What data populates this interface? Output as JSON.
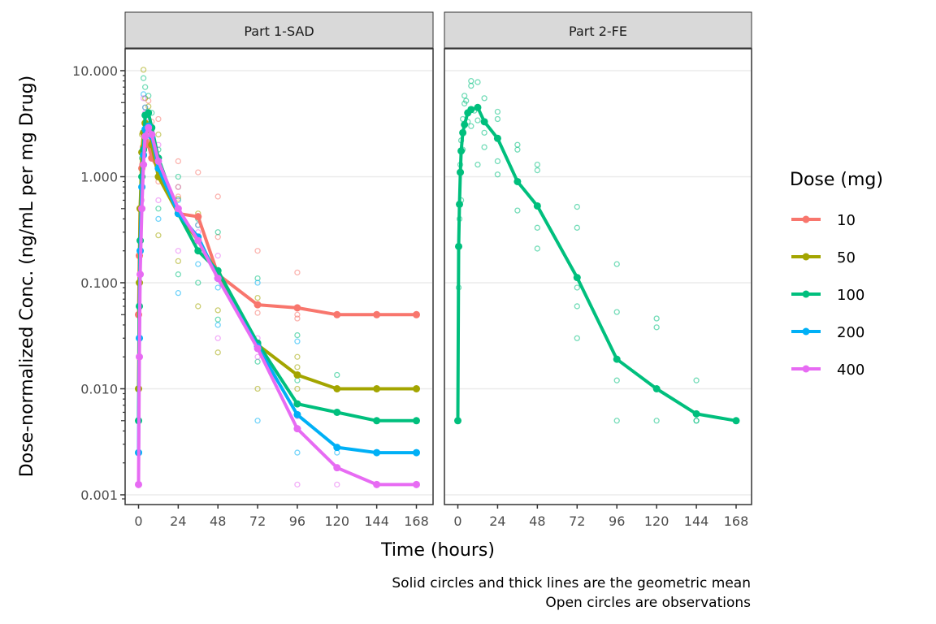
{
  "chart_data": {
    "type": "line",
    "title": "",
    "xlabel": "Time (hours)",
    "ylabel": "Dose-normalized Conc. (ng/mL per mg Drug)",
    "yscale": "log10",
    "ylim": [
      0.001,
      15
    ],
    "xlim": [
      -5,
      173
    ],
    "x_ticks": [
      0,
      24,
      48,
      72,
      96,
      120,
      144,
      168
    ],
    "x_tick_labels": [
      "0",
      "24",
      "48",
      "72",
      "96",
      "120",
      "144",
      "168"
    ],
    "y_ticks": [
      0.001,
      0.01,
      0.1,
      1,
      10
    ],
    "y_tick_labels": [
      "0.001",
      "0.010",
      "0.100",
      "1.000",
      "10.000"
    ],
    "grid": true,
    "legend": {
      "title": "Dose (mg)",
      "placement": "right",
      "entries": [
        {
          "label": "10",
          "color": "#F8766D"
        },
        {
          "label": "50",
          "color": "#A3A500"
        },
        {
          "label": "100",
          "color": "#00BF7D"
        },
        {
          "label": "200",
          "color": "#00B0F6"
        },
        {
          "label": "400",
          "color": "#E76BF3"
        }
      ]
    },
    "caption_lines": [
      "Solid circles and thick lines are the geometric mean",
      "Open circles are observations"
    ],
    "panels": [
      {
        "strip": "Part 1-SAD",
        "series": [
          {
            "name": "10",
            "color": "#F8766D",
            "x": [
              0,
              0.5,
              1,
              2,
              3,
              4,
              6,
              8,
              12,
              24,
              36,
              48,
              72,
              96,
              120,
              144,
              168
            ],
            "y": [
              0.05,
              0.18,
              0.5,
              1.2,
              1.9,
              2.2,
              2.0,
              1.5,
              1.2,
              0.45,
              0.42,
              0.12,
              0.062,
              0.058,
              0.05,
              0.05,
              0.05
            ]
          },
          {
            "name": "50",
            "color": "#A3A500",
            "x": [
              0,
              0.5,
              1,
              2,
              3,
              4,
              6,
              8,
              12,
              24,
              36,
              48,
              72,
              96,
              120,
              144,
              168
            ],
            "y": [
              0.01,
              0.1,
              0.5,
              1.7,
              2.6,
              3.2,
              3.0,
              2.0,
              1.0,
              0.45,
              0.25,
              0.12,
              0.026,
              0.0135,
              0.01,
              0.01,
              0.01
            ]
          },
          {
            "name": "100",
            "color": "#00BF7D",
            "x": [
              0,
              0.5,
              1,
              2,
              3,
              4,
              6,
              8,
              12,
              24,
              36,
              48,
              72,
              96,
              120,
              144,
              168
            ],
            "y": [
              0.005,
              0.06,
              0.25,
              1.0,
              1.8,
              3.8,
              4.0,
              2.9,
              1.5,
              0.45,
              0.2,
              0.13,
              0.027,
              0.0072,
              0.006,
              0.005,
              0.005
            ]
          },
          {
            "name": "200",
            "color": "#00B0F6",
            "x": [
              0,
              0.5,
              1,
              2,
              3,
              4,
              6,
              8,
              12,
              24,
              36,
              48,
              72,
              96,
              120,
              144,
              168
            ],
            "y": [
              0.0025,
              0.03,
              0.2,
              0.8,
              1.6,
              2.8,
              3.0,
              2.4,
              1.2,
              0.45,
              0.27,
              0.11,
              0.025,
              0.0057,
              0.0028,
              0.0025,
              0.0025
            ]
          },
          {
            "name": "400",
            "color": "#E76BF3",
            "x": [
              0,
              0.5,
              1,
              2,
              3,
              4,
              6,
              8,
              12,
              24,
              36,
              48,
              72,
              96,
              120,
              144,
              168
            ],
            "y": [
              0.00125,
              0.02,
              0.12,
              0.5,
              1.3,
              2.4,
              2.9,
              2.5,
              1.4,
              0.5,
              0.25,
              0.11,
              0.024,
              0.0042,
              0.0018,
              0.00125,
              0.00125
            ]
          }
        ],
        "observations": [
          {
            "color": "#F8766D",
            "x": [
              0.5,
              1,
              2,
              3,
              4,
              6,
              8,
              12,
              12,
              24,
              24,
              36,
              36,
              48,
              48,
              72,
              72,
              96,
              96,
              96,
              120,
              144,
              168
            ],
            "y": [
              0.18,
              0.5,
              1.3,
              2.5,
              4.5,
              5.2,
              3.3,
              3.5,
              0.9,
              1.4,
              0.65,
              1.1,
              0.35,
              0.65,
              0.27,
              0.2,
              0.052,
              0.125,
              0.05,
              0.046,
              0.05,
              0.05,
              0.05
            ]
          },
          {
            "color": "#A3A500",
            "x": [
              0,
              1,
              2,
              3,
              4,
              6,
              8,
              12,
              12,
              24,
              24,
              24,
              36,
              36,
              48,
              48,
              72,
              72,
              96,
              96,
              96
            ],
            "y": [
              0.01,
              0.5,
              2.5,
              10.2,
              5.5,
              4.6,
              2.8,
              2.5,
              0.28,
              0.8,
              0.62,
              0.16,
              0.45,
              0.06,
              0.055,
              0.022,
              0.072,
              0.01,
              0.02,
              0.016,
              0.01
            ]
          },
          {
            "color": "#00BF7D",
            "x": [
              0,
              1,
              2,
              3,
              4,
              6,
              8,
              12,
              12,
              24,
              24,
              36,
              36,
              48,
              48,
              72,
              72,
              96,
              96,
              120
            ],
            "y": [
              0.005,
              0.25,
              1.5,
              8.5,
              7.0,
              5.8,
              4.0,
              1.8,
              0.5,
              1.0,
              0.12,
              0.4,
              0.1,
              0.3,
              0.045,
              0.11,
              0.018,
              0.032,
              0.012,
              0.0135
            ]
          },
          {
            "color": "#00B0F6",
            "x": [
              0,
              1,
              2,
              3,
              4,
              6,
              8,
              12,
              12,
              24,
              24,
              36,
              36,
              48,
              48,
              72,
              72,
              96,
              96,
              120
            ],
            "y": [
              0.0025,
              0.2,
              1.0,
              6.0,
              4.5,
              3.5,
              2.6,
              1.5,
              0.4,
              0.6,
              0.08,
              0.35,
              0.15,
              0.09,
              0.04,
              0.1,
              0.005,
              0.028,
              0.0025,
              0.0025
            ]
          },
          {
            "color": "#E76BF3",
            "x": [
              0,
              1,
              2,
              3,
              4,
              6,
              8,
              12,
              12,
              24,
              24,
              36,
              48,
              48,
              72,
              72,
              96,
              96,
              120
            ],
            "y": [
              0.00125,
              0.12,
              0.6,
              5.5,
              4.0,
              3.3,
              2.2,
              2.0,
              0.6,
              0.8,
              0.2,
              0.3,
              0.18,
              0.03,
              0.03,
              0.02,
              0.0055,
              0.00125,
              0.00125
            ]
          }
        ]
      },
      {
        "strip": "Part 2-FE",
        "series": [
          {
            "name": "100",
            "color": "#00BF7D",
            "x": [
              0,
              0.5,
              1,
              1.5,
              2,
              3,
              4,
              6,
              8,
              12,
              16,
              24,
              36,
              48,
              72,
              96,
              120,
              144,
              168
            ],
            "y": [
              0.005,
              0.22,
              0.55,
              1.1,
              1.75,
              2.6,
              3.1,
              4.0,
              4.3,
              4.5,
              3.3,
              2.3,
              0.9,
              0.53,
              0.112,
              0.019,
              0.01,
              0.0058,
              0.005
            ]
          }
        ],
        "observations": [
          {
            "color": "#00BF7D",
            "x": [
              0,
              0.5,
              1,
              1.5,
              2,
              2,
              3,
              3,
              4,
              4,
              5,
              6,
              6,
              8,
              8,
              8,
              10,
              12,
              12,
              12,
              16,
              16,
              16,
              24,
              24,
              24,
              24,
              36,
              36,
              36,
              48,
              48,
              48,
              48,
              72,
              72,
              72,
              72,
              72,
              96,
              96,
              96,
              96,
              120,
              120,
              120,
              144,
              144,
              144
            ],
            "y": [
              0.005,
              0.09,
              0.4,
              1.3,
              2.2,
              0.6,
              3.5,
              1.8,
              5.8,
              4.9,
              5.2,
              4.0,
              3.3,
              8.0,
              7.2,
              3.0,
              4.2,
              7.8,
              3.4,
              1.3,
              5.5,
              2.6,
              1.9,
              4.1,
              3.5,
              1.4,
              1.05,
              2.0,
              1.8,
              0.48,
              1.3,
              1.15,
              0.33,
              0.21,
              0.52,
              0.33,
              0.09,
              0.06,
              0.03,
              0.15,
              0.053,
              0.012,
              0.005,
              0.046,
              0.038,
              0.005,
              0.012,
              0.005,
              0.005
            ]
          }
        ]
      }
    ]
  }
}
